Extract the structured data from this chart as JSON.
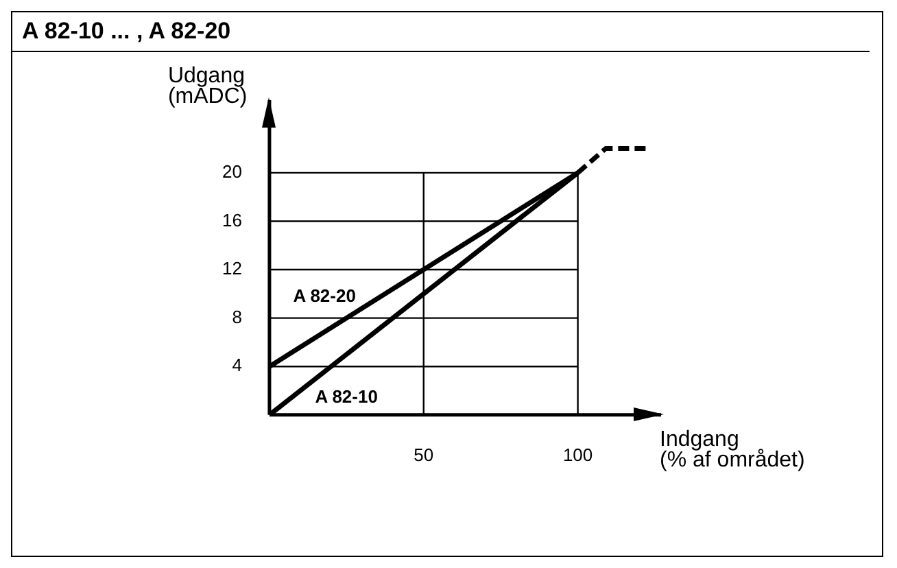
{
  "chart_data": {
    "type": "line",
    "title": "A 82-10 ... , A 82-20",
    "xlabel": "Indgang\n(% af området)",
    "ylabel": "Udgang\n(mADC)",
    "xlim": [
      0,
      127
    ],
    "ylim": [
      0,
      26
    ],
    "xticks": [
      50,
      100
    ],
    "yticks": [
      4,
      8,
      12,
      16,
      20
    ],
    "grid": true,
    "legend": false,
    "marker": "none",
    "series": [
      {
        "name": "A 82-20",
        "color": "#000000",
        "x": [
          0,
          100
        ],
        "values": [
          4,
          20
        ]
      },
      {
        "name": "A 82-10",
        "color": "#000000",
        "x": [
          0,
          100
        ],
        "values": [
          0,
          20
        ]
      },
      {
        "color": "#000000",
        "x": [
          100,
          109,
          123
        ],
        "values": [
          20,
          22,
          22
        ],
        "line_style": "dashed"
      }
    ]
  }
}
